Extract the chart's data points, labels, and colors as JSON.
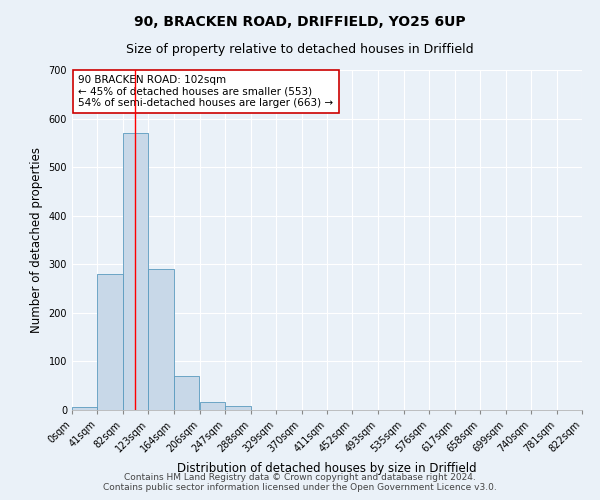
{
  "title1": "90, BRACKEN ROAD, DRIFFIELD, YO25 6UP",
  "title2": "Size of property relative to detached houses in Driffield",
  "xlabel": "Distribution of detached houses by size in Driffield",
  "ylabel": "Number of detached properties",
  "footnote1": "Contains HM Land Registry data © Crown copyright and database right 2024.",
  "footnote2": "Contains public sector information licensed under the Open Government Licence v3.0.",
  "bin_edges": [
    0,
    41,
    82,
    123,
    164,
    206,
    247,
    288,
    329,
    370,
    411,
    452,
    493,
    535,
    576,
    617,
    658,
    699,
    740,
    781,
    822
  ],
  "bar_heights": [
    7,
    280,
    570,
    290,
    70,
    17,
    9,
    0,
    0,
    0,
    0,
    0,
    0,
    0,
    0,
    0,
    0,
    0,
    0,
    0
  ],
  "bar_color": "#c8d8e8",
  "bar_edgecolor": "#5a9abf",
  "red_line_x": 102,
  "annotation_text": "90 BRACKEN ROAD: 102sqm\n← 45% of detached houses are smaller (553)\n54% of semi-detached houses are larger (663) →",
  "annotation_box_color": "#ffffff",
  "annotation_box_edgecolor": "#cc0000",
  "annotation_fontsize": 7.5,
  "ylim": [
    0,
    700
  ],
  "yticks": [
    0,
    100,
    200,
    300,
    400,
    500,
    600,
    700
  ],
  "background_color": "#eaf1f8",
  "grid_color": "#ffffff",
  "title1_fontsize": 10,
  "title2_fontsize": 9,
  "axis_label_fontsize": 8.5,
  "tick_label_fontsize": 7,
  "footnote_fontsize": 6.5
}
